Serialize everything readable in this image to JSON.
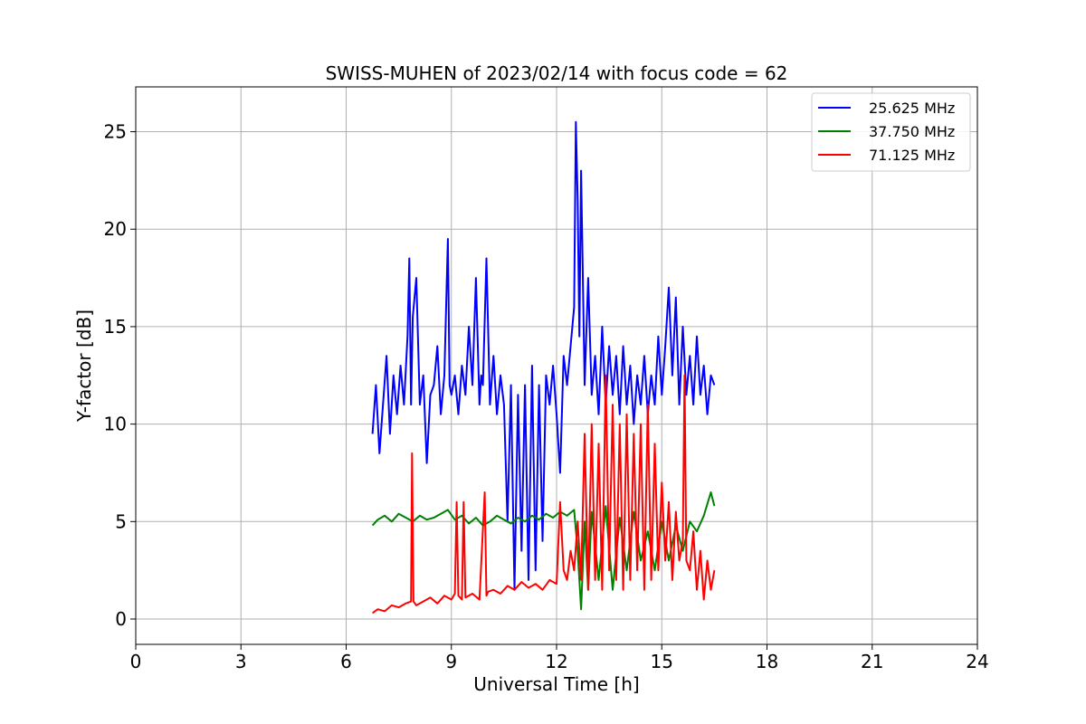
{
  "chart_data": {
    "type": "line",
    "title": "SWISS-MUHEN of 2023/02/14 with focus code = 62",
    "xlabel": "Universal Time [h]",
    "ylabel": "Y-factor [dB]",
    "xlim": [
      0,
      24
    ],
    "ylim": [
      -1.3,
      27.3
    ],
    "xticks": [
      0,
      3,
      6,
      9,
      12,
      15,
      18,
      21,
      24
    ],
    "yticks": [
      0,
      5,
      10,
      15,
      20,
      25
    ],
    "grid": true,
    "legend_position": "top-right",
    "series": [
      {
        "name": "25.625 MHz",
        "color": "#0000ff",
        "x": [
          6.75,
          6.85,
          6.95,
          7.05,
          7.15,
          7.25,
          7.35,
          7.45,
          7.55,
          7.65,
          7.75,
          7.8,
          7.85,
          7.9,
          8.0,
          8.1,
          8.2,
          8.3,
          8.4,
          8.5,
          8.6,
          8.7,
          8.8,
          8.9,
          8.95,
          9.0,
          9.1,
          9.2,
          9.3,
          9.4,
          9.5,
          9.6,
          9.7,
          9.8,
          9.85,
          9.9,
          10.0,
          10.1,
          10.2,
          10.3,
          10.4,
          10.5,
          10.6,
          10.7,
          10.8,
          10.9,
          11.0,
          11.1,
          11.2,
          11.3,
          11.4,
          11.5,
          11.6,
          11.7,
          11.8,
          11.9,
          12.0,
          12.1,
          12.2,
          12.3,
          12.4,
          12.5,
          12.55,
          12.6,
          12.65,
          12.7,
          12.8,
          12.9,
          13.0,
          13.1,
          13.2,
          13.3,
          13.4,
          13.5,
          13.6,
          13.7,
          13.8,
          13.9,
          14.0,
          14.1,
          14.2,
          14.3,
          14.4,
          14.5,
          14.6,
          14.7,
          14.8,
          14.9,
          15.0,
          15.1,
          15.2,
          15.3,
          15.4,
          15.5,
          15.6,
          15.7,
          15.8,
          15.9,
          16.0,
          16.1,
          16.2,
          16.3,
          16.4,
          16.5
        ],
        "y": [
          9.5,
          12.0,
          8.5,
          11.0,
          13.5,
          9.5,
          12.5,
          10.5,
          13.0,
          11.0,
          14.5,
          18.5,
          11.0,
          15.5,
          17.5,
          11.0,
          12.5,
          8.0,
          11.5,
          12.0,
          14.0,
          10.5,
          12.5,
          19.5,
          12.0,
          11.5,
          12.5,
          10.5,
          13.0,
          11.5,
          15.0,
          12.0,
          17.5,
          11.0,
          12.5,
          12.0,
          18.5,
          11.0,
          13.5,
          10.5,
          12.5,
          11.0,
          5.0,
          12.0,
          1.5,
          11.5,
          3.5,
          12.0,
          2.0,
          13.0,
          2.5,
          12.0,
          4.0,
          12.5,
          11.0,
          13.0,
          10.5,
          7.5,
          13.5,
          12.0,
          14.0,
          16.0,
          25.5,
          21.5,
          14.5,
          23.0,
          12.0,
          17.5,
          11.5,
          13.5,
          10.5,
          15.0,
          11.0,
          14.0,
          11.5,
          13.5,
          10.5,
          14.0,
          11.0,
          13.0,
          10.0,
          12.5,
          11.0,
          13.5,
          10.5,
          12.5,
          11.0,
          14.5,
          11.5,
          14.0,
          17.0,
          12.5,
          16.5,
          11.0,
          15.0,
          11.5,
          13.5,
          11.0,
          14.5,
          11.5,
          13.0,
          10.5,
          12.5,
          12.0
        ]
      },
      {
        "name": "37.750 MHz",
        "color": "#008000",
        "x": [
          6.75,
          6.9,
          7.1,
          7.3,
          7.5,
          7.7,
          7.9,
          8.1,
          8.3,
          8.5,
          8.7,
          8.9,
          9.1,
          9.3,
          9.5,
          9.7,
          9.9,
          10.1,
          10.3,
          10.5,
          10.7,
          10.9,
          11.1,
          11.3,
          11.5,
          11.7,
          11.9,
          12.1,
          12.3,
          12.5,
          12.6,
          12.7,
          12.8,
          12.9,
          13.0,
          13.2,
          13.4,
          13.6,
          13.8,
          14.0,
          14.2,
          14.4,
          14.6,
          14.8,
          15.0,
          15.2,
          15.4,
          15.6,
          15.8,
          16.0,
          16.2,
          16.4,
          16.5
        ],
        "y": [
          4.8,
          5.1,
          5.3,
          5.0,
          5.4,
          5.2,
          5.0,
          5.3,
          5.1,
          5.2,
          5.4,
          5.6,
          5.1,
          5.3,
          4.9,
          5.2,
          4.8,
          5.0,
          5.3,
          5.1,
          4.9,
          5.2,
          5.0,
          5.3,
          5.1,
          5.4,
          5.2,
          5.5,
          5.3,
          5.6,
          3.5,
          0.5,
          5.0,
          1.5,
          5.5,
          2.0,
          5.8,
          1.5,
          5.2,
          2.5,
          5.5,
          3.0,
          4.5,
          2.5,
          5.0,
          3.0,
          4.8,
          3.5,
          5.0,
          4.5,
          5.3,
          6.5,
          5.8
        ]
      },
      {
        "name": "71.125 MHz",
        "color": "#ff0000",
        "x": [
          6.75,
          6.9,
          7.1,
          7.3,
          7.5,
          7.7,
          7.85,
          7.88,
          7.92,
          8.0,
          8.2,
          8.4,
          8.6,
          8.8,
          9.0,
          9.1,
          9.15,
          9.2,
          9.3,
          9.35,
          9.4,
          9.6,
          9.8,
          9.95,
          10.0,
          10.05,
          10.2,
          10.4,
          10.6,
          10.8,
          11.0,
          11.2,
          11.4,
          11.6,
          11.8,
          12.0,
          12.1,
          12.2,
          12.3,
          12.4,
          12.5,
          12.6,
          12.7,
          12.8,
          12.9,
          13.0,
          13.1,
          13.2,
          13.3,
          13.4,
          13.5,
          13.6,
          13.7,
          13.8,
          13.9,
          14.0,
          14.1,
          14.2,
          14.3,
          14.4,
          14.5,
          14.6,
          14.7,
          14.8,
          14.9,
          15.0,
          15.1,
          15.2,
          15.3,
          15.4,
          15.5,
          15.6,
          15.65,
          15.7,
          15.8,
          15.9,
          16.0,
          16.1,
          16.2,
          16.3,
          16.4,
          16.5
        ],
        "y": [
          0.3,
          0.5,
          0.4,
          0.7,
          0.6,
          0.8,
          0.9,
          8.5,
          0.9,
          0.7,
          0.9,
          1.1,
          0.8,
          1.2,
          1.0,
          1.3,
          6.0,
          1.2,
          1.0,
          6.0,
          1.1,
          1.3,
          1.0,
          6.5,
          1.2,
          1.4,
          1.5,
          1.3,
          1.7,
          1.5,
          1.9,
          1.6,
          1.8,
          1.5,
          2.0,
          1.8,
          6.0,
          2.5,
          2.0,
          3.5,
          2.5,
          5.0,
          2.0,
          9.5,
          1.5,
          10.0,
          2.0,
          9.0,
          1.5,
          12.5,
          2.5,
          11.0,
          2.0,
          10.0,
          1.5,
          10.5,
          2.0,
          9.5,
          2.5,
          10.0,
          1.5,
          11.0,
          2.0,
          9.0,
          2.5,
          7.0,
          3.0,
          6.0,
          2.0,
          5.5,
          3.0,
          4.0,
          12.5,
          3.0,
          2.5,
          4.5,
          1.5,
          3.5,
          1.0,
          3.0,
          1.5,
          2.5
        ]
      }
    ]
  }
}
